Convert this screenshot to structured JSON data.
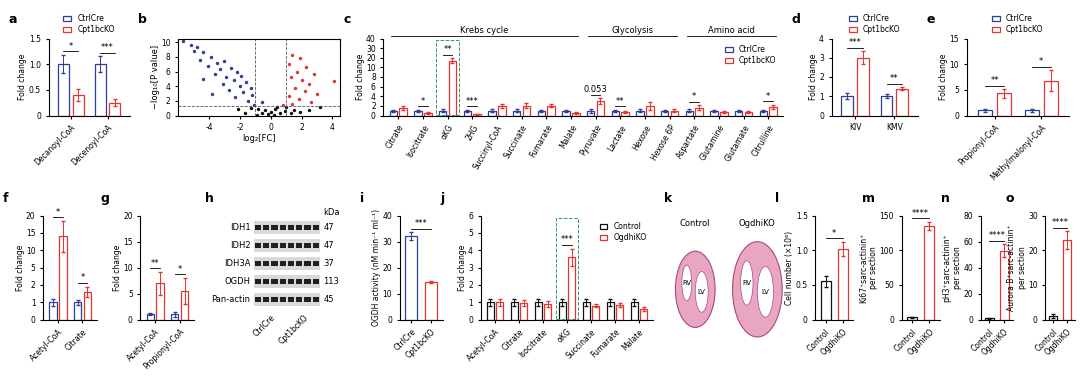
{
  "chart_data": [
    {
      "panel": "a",
      "type": "bar",
      "y_label": "Fold change",
      "categories": [
        "Decanoyl-CoA",
        "Decenoyl-CoA"
      ],
      "series": [
        {
          "name": "CtrlCre",
          "color": "#2b3f97",
          "values": [
            1.0,
            1.0
          ],
          "errors": [
            0.18,
            0.15
          ]
        },
        {
          "name": "Cpt1bcKO",
          "color": "#e4342f",
          "values": [
            0.4,
            0.25
          ],
          "errors": [
            0.12,
            0.07
          ]
        }
      ],
      "ylim": [
        0,
        1.5
      ],
      "yticks": [
        0,
        0.5,
        {
          "value": 1,
          "label": "1.0"
        },
        1.5
      ],
      "significance": [
        "*",
        "***"
      ],
      "legend": "upper center"
    },
    {
      "panel": "b",
      "type": "scatter",
      "x_label": "log₂[FC]",
      "y_label": "−log₁₀[P value]",
      "series": [
        {
          "color": "#2b3f97",
          "x": [
            -5.7,
            -5.2,
            -4.8,
            -5.0,
            -4.4,
            -3.9,
            -4.6,
            -3.5,
            -3.0,
            -4.1,
            -3.3,
            -2.6,
            -2.2,
            -3.6,
            -2.9,
            -1.9,
            -4.4,
            -2.4,
            -1.6,
            -3.1,
            -2.0,
            -1.3,
            -2.7,
            -1.8,
            -3.8,
            -1.2,
            -2.3,
            -1.5,
            -0.6,
            -1.1
          ],
          "y": [
            10.2,
            9.6,
            9.3,
            8.8,
            8.6,
            8.0,
            7.6,
            7.2,
            7.5,
            6.8,
            6.4,
            6.5,
            6.0,
            5.7,
            5.3,
            5.4,
            5.0,
            4.8,
            4.6,
            4.3,
            4.0,
            3.8,
            3.5,
            3.2,
            3.0,
            2.8,
            2.5,
            2.0,
            1.8,
            1.5
          ]
        },
        {
          "color": "#e4342f",
          "x": [
            1.4,
            1.9,
            1.2,
            2.3,
            1.7,
            2.8,
            1.3,
            2.0,
            4.1,
            2.5,
            1.6,
            2.2,
            3.0,
            1.2,
            1.8,
            2.6,
            1.4,
            0.8
          ],
          "y": [
            8.2,
            7.8,
            7.0,
            6.6,
            6.0,
            5.6,
            5.2,
            4.9,
            4.7,
            4.3,
            3.8,
            3.4,
            3.0,
            2.6,
            2.2,
            1.9,
            1.6,
            1.5
          ]
        },
        {
          "color": "#111111",
          "x": [
            -1.3,
            -0.8,
            -0.4,
            0,
            0.3,
            0.6,
            1.0,
            1.5,
            -0.2,
            0.2,
            -0.6,
            0.9,
            1.9,
            2.5,
            3.2,
            -1.7,
            -2.1,
            0.4,
            -0.9,
            1.3
          ],
          "y": [
            1.0,
            0.9,
            0.7,
            0.5,
            0.9,
            0.4,
            1.1,
            0.8,
            0.2,
            0.1,
            0.3,
            0.6,
            0.5,
            0.7,
            1.2,
            0.4,
            0.9,
            1.2,
            0.1,
            0.3
          ]
        }
      ],
      "thresholds": {
        "x": [
          -1,
          1
        ],
        "y": [
          1.3
        ]
      },
      "xlim": [
        -6,
        4.5
      ],
      "xticks": [
        -4,
        -2,
        0,
        2,
        4
      ],
      "ylim": [
        0,
        10.5
      ],
      "yticks": [
        0,
        2,
        4,
        6,
        8,
        10
      ]
    },
    {
      "panel": "c",
      "type": "bar",
      "y_label": "Fold change",
      "categories": [
        "Citrate",
        "Isocitrate",
        "αKG",
        "2HG",
        "Succinyl-CoA",
        "Succinate",
        "Fumarate",
        "Malate",
        "Pyruvate",
        "Lactate",
        "Hexose",
        "Hexose 6P",
        "Aspartate",
        "Glutamine",
        "Glutamate",
        "Citrulline"
      ],
      "series": [
        {
          "name": "CtrlCre",
          "color": "#2b3f97",
          "values": [
            1.0,
            1.0,
            1.0,
            1.0,
            1.0,
            1.0,
            1.0,
            1.0,
            1.0,
            1.0,
            1.0,
            1.0,
            1.0,
            1.0,
            1.0,
            1.0
          ],
          "errors": [
            0.2,
            0.2,
            0.3,
            0.2,
            0.3,
            0.3,
            0.2,
            0.2,
            0.4,
            0.2,
            0.3,
            0.2,
            0.3,
            0.2,
            0.2,
            0.2
          ]
        },
        {
          "name": "Cpt1bcKO",
          "color": "#e4342f",
          "values": [
            1.5,
            0.5,
            17,
            0.3,
            2.0,
            2.0,
            2.0,
            0.6,
            3.0,
            0.7,
            2.0,
            1.0,
            1.6,
            0.8,
            0.7,
            1.8
          ],
          "errors": [
            0.4,
            0.2,
            2.5,
            0.1,
            0.4,
            0.5,
            0.3,
            0.2,
            0.6,
            0.2,
            0.8,
            0.3,
            0.5,
            0.2,
            0.2,
            0.4
          ]
        }
      ],
      "ylim": [
        0,
        40
      ],
      "yticks": [
        0,
        2,
        4,
        6,
        8,
        10,
        20,
        30,
        40
      ],
      "significance": [
        null,
        "*",
        "**",
        "***",
        null,
        null,
        null,
        null,
        "0.053",
        "**",
        null,
        null,
        "*",
        null,
        null,
        "*"
      ],
      "groups": [
        {
          "label": "Krebs cycle",
          "first": "Citrate",
          "last": "Malate"
        },
        {
          "label": "Glycolysis",
          "first": "Pyruvate",
          "last": "Hexose 6P"
        },
        {
          "label": "Amino acid",
          "first": "Aspartate",
          "last": "Citrulline"
        }
      ],
      "highlight": "αKG",
      "legend": "upper right"
    },
    {
      "panel": "d",
      "type": "bar",
      "y_label": "Fold change",
      "categories": [
        "KIV",
        "KMV"
      ],
      "series": [
        {
          "name": "CtrlCre",
          "color": "#2b3f97",
          "values": [
            1.0,
            1.0
          ],
          "errors": [
            0.15,
            0.1
          ]
        },
        {
          "name": "Cpt1bcKO",
          "color": "#e4342f",
          "values": [
            3.0,
            1.4
          ],
          "errors": [
            0.35,
            0.08
          ]
        }
      ],
      "ylim": [
        0,
        4
      ],
      "yticks": [
        0,
        1,
        2,
        3,
        4
      ],
      "significance": [
        "***",
        "**"
      ],
      "legend": "upper center"
    },
    {
      "panel": "e",
      "type": "bar",
      "y_label": "Fold change",
      "categories": [
        "Propionyl-CoA",
        "Methylmalonyl-CoA"
      ],
      "series": [
        {
          "name": "CtrlCre",
          "color": "#2b3f97",
          "values": [
            1.0,
            1.0
          ],
          "errors": [
            0.3,
            0.3
          ]
        },
        {
          "name": "Cpt1bcKO",
          "color": "#e4342f",
          "values": [
            4.3,
            6.8
          ],
          "errors": [
            0.8,
            2.0
          ]
        }
      ],
      "ylim": [
        0,
        15
      ],
      "yticks": [
        0,
        5,
        10,
        15
      ],
      "significance": [
        "**",
        "*"
      ],
      "legend": "upper center"
    },
    {
      "panel": "f",
      "type": "bar",
      "y_label": "Fold change",
      "categories": [
        "Acetyl-CoA",
        "Citrate"
      ],
      "series": [
        {
          "color": "#2b3f97",
          "values": [
            1.0,
            1.0
          ],
          "errors": [
            0.2,
            0.15
          ]
        },
        {
          "color": "#e4342f",
          "values": [
            14,
            1.6
          ],
          "errors": [
            4.5,
            0.3
          ]
        }
      ],
      "ylim": [
        0,
        20
      ],
      "yticks": [
        0,
        1,
        2,
        5,
        10,
        15,
        20
      ],
      "significance": [
        "*",
        "*"
      ]
    },
    {
      "panel": "g",
      "type": "bar",
      "y_label": "Fold change",
      "categories": [
        "Acetyl-CoA",
        "Propionyl-CoA"
      ],
      "series": [
        {
          "color": "#2b3f97",
          "values": [
            1.0,
            1.0
          ],
          "errors": [
            0.2,
            0.5
          ]
        },
        {
          "color": "#e4342f",
          "values": [
            7,
            5.5
          ],
          "errors": [
            2.2,
            2.5
          ]
        }
      ],
      "ylim": [
        0,
        20
      ],
      "yticks": [
        0,
        5,
        10,
        15,
        20
      ],
      "significance": [
        "**",
        "*"
      ]
    },
    {
      "panel": "h",
      "type": "blot",
      "unit": "kDa",
      "rows": [
        {
          "label": "IDH1",
          "kDa": 47
        },
        {
          "label": "IDH2",
          "kDa": 47
        },
        {
          "label": "IDH3A",
          "kDa": 37
        },
        {
          "label": "OGDH",
          "kDa": 113
        },
        {
          "label": "Pan-actin",
          "kDa": 45
        }
      ],
      "lanes": [
        "CtrlCre",
        "Cpt1bcKO"
      ]
    },
    {
      "panel": "i",
      "type": "bar",
      "y_label": "OGDH activity (nM min⁻¹ ml⁻¹)",
      "categories": [
        "CtrlCre",
        "Cpt1bcKO"
      ],
      "values": [
        32,
        14.5
      ],
      "errors": [
        1.5,
        0.4
      ],
      "colors": [
        "#2b3f97",
        "#e4342f"
      ],
      "ylim": [
        0,
        40
      ],
      "yticks": [
        0,
        10,
        20,
        30,
        40
      ],
      "significance": [
        "***"
      ]
    },
    {
      "panel": "j",
      "type": "bar",
      "y_label": "Fold change",
      "categories": [
        "Acetyl-CoA",
        "Citrate",
        "Isocitrate",
        "αKG",
        "Succinate",
        "Fumarate",
        "Malate"
      ],
      "series": [
        {
          "name": "Control",
          "color": "#111111",
          "values": [
            1.0,
            1.0,
            1.0,
            1.0,
            1.0,
            1.0,
            1.0
          ],
          "errors": [
            0.2,
            0.2,
            0.2,
            0.2,
            0.2,
            0.2,
            0.2
          ]
        },
        {
          "name": "OgdhiKO",
          "color": "#e4342f",
          "values": [
            1.0,
            0.95,
            0.9,
            3.6,
            0.8,
            0.85,
            0.6
          ],
          "errors": [
            0.2,
            0.15,
            0.15,
            0.5,
            0.1,
            0.1,
            0.1
          ]
        }
      ],
      "ylim": [
        0,
        6
      ],
      "yticks": [
        0,
        1,
        2,
        3,
        4,
        5,
        6
      ],
      "significance": [
        null,
        null,
        null,
        "***",
        null,
        null,
        null
      ],
      "highlight": "αKG",
      "legend": "upper right"
    },
    {
      "panel": "k",
      "type": "image",
      "images": [
        {
          "title": "Control",
          "labels": [
            "RV",
            "LV"
          ]
        },
        {
          "title": "OgdhiKO",
          "labels": [
            "RV",
            "LV"
          ]
        }
      ]
    },
    {
      "panel": "l",
      "type": "bar",
      "y_label": "Cell number (×10⁶)",
      "categories": [
        "Control",
        "OgdhiKO"
      ],
      "values": [
        0.55,
        1.02
      ],
      "errors": [
        0.08,
        0.1
      ],
      "colors": [
        "#111111",
        "#e4342f"
      ],
      "ylim": [
        0,
        1.5
      ],
      "yticks": [
        0,
        0.5,
        {
          "value": 1,
          "label": "1.0"
        },
        1.5
      ],
      "significance": [
        "*"
      ]
    },
    {
      "panel": "m",
      "type": "bar",
      "y_label": "Ki67⁺sarc-actinin⁺\nper section",
      "categories": [
        "Control",
        "OgdhiKO"
      ],
      "values": [
        3,
        135
      ],
      "errors": [
        1,
        6
      ],
      "colors": [
        "#111111",
        "#e4342f"
      ],
      "ylim": [
        0,
        150
      ],
      "yticks": [
        0,
        50,
        100,
        150
      ],
      "significance": [
        "****"
      ]
    },
    {
      "panel": "n",
      "type": "bar",
      "y_label": "pH3⁺sarc-actinin⁺\nper section",
      "categories": [
        "Control",
        "OgdhiKO"
      ],
      "values": [
        1,
        53
      ],
      "errors": [
        0.5,
        5
      ],
      "colors": [
        "#111111",
        "#e4342f"
      ],
      "ylim": [
        0,
        80
      ],
      "yticks": [
        0,
        20,
        40,
        60,
        80
      ],
      "significance": [
        "****"
      ]
    },
    {
      "panel": "o",
      "type": "bar",
      "y_label": "Aurora B⁺sarc-actinin⁺\nper section",
      "categories": [
        "Control",
        "OgdhiKO"
      ],
      "values": [
        1,
        23
      ],
      "errors": [
        0.5,
        2.5
      ],
      "colors": [
        "#111111",
        "#e4342f"
      ],
      "ylim": [
        0,
        30
      ],
      "yticks": [
        0,
        10,
        20,
        30
      ],
      "significance": [
        "****"
      ]
    }
  ]
}
